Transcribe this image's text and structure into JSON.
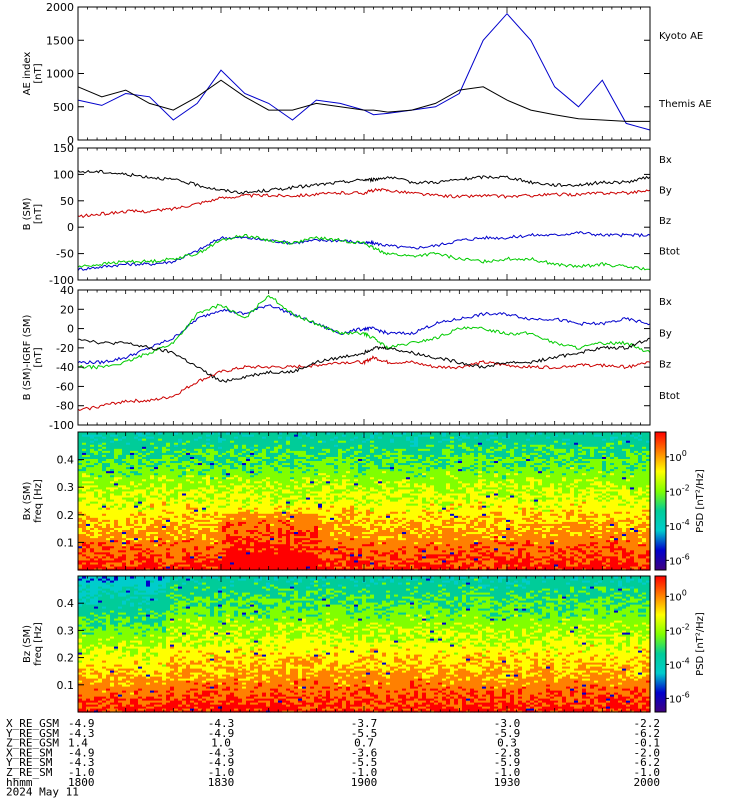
{
  "chart_data": [
    {
      "id": "ae",
      "type": "line",
      "title": "",
      "ylabel_line1": "AE index",
      "ylabel_line2": "[nT]",
      "ylim": [
        0,
        2000
      ],
      "yticks": [
        0,
        500,
        1000,
        1500,
        2000
      ],
      "x": [
        0,
        5,
        10,
        15,
        20,
        25,
        30,
        35,
        40,
        45,
        50,
        55,
        60,
        62,
        65,
        70,
        75,
        80,
        85,
        90,
        95,
        100,
        105,
        110,
        115,
        120
      ],
      "series": [
        {
          "name": "Kyoto AE",
          "color": "#0000cc",
          "values": [
            600,
            520,
            700,
            650,
            300,
            550,
            1050,
            700,
            550,
            300,
            600,
            550,
            450,
            380,
            400,
            450,
            500,
            700,
            1500,
            1900,
            1500,
            800,
            500,
            900,
            250,
            150
          ]
        },
        {
          "name": "Themis AE",
          "color": "#000000",
          "values": [
            800,
            650,
            750,
            550,
            450,
            650,
            900,
            650,
            450,
            450,
            550,
            500,
            450,
            450,
            420,
            450,
            550,
            750,
            800,
            600,
            450,
            380,
            320,
            300,
            280,
            280
          ]
        }
      ]
    },
    {
      "id": "bsm",
      "type": "line",
      "title": "",
      "ylabel_line1": "B (SM)",
      "ylabel_line2": "[nT]",
      "ylim": [
        -100,
        150
      ],
      "yticks": [
        -100,
        -50,
        0,
        50,
        100,
        150
      ],
      "x": [
        0,
        5,
        10,
        15,
        20,
        25,
        30,
        35,
        40,
        45,
        50,
        55,
        60,
        62,
        65,
        70,
        75,
        80,
        85,
        90,
        95,
        100,
        105,
        110,
        115,
        120
      ],
      "series": [
        {
          "name": "Bx",
          "color": "#0000cc",
          "values": [
            -80,
            -75,
            -70,
            -70,
            -65,
            -45,
            -20,
            -20,
            -25,
            -30,
            -25,
            -25,
            -30,
            -30,
            -35,
            -40,
            -35,
            -25,
            -20,
            -20,
            -15,
            -15,
            -10,
            -15,
            -15,
            -15
          ]
        },
        {
          "name": "By",
          "color": "#00cc00",
          "values": [
            -75,
            -70,
            -65,
            -65,
            -60,
            -50,
            -25,
            -15,
            -25,
            -30,
            -20,
            -25,
            -30,
            -40,
            -50,
            -55,
            -50,
            -60,
            -65,
            -60,
            -60,
            -70,
            -75,
            -70,
            -75,
            -80
          ]
        },
        {
          "name": "Bz",
          "color": "#cc0000",
          "values": [
            20,
            25,
            30,
            30,
            35,
            45,
            55,
            60,
            60,
            60,
            62,
            65,
            65,
            70,
            70,
            65,
            60,
            58,
            60,
            58,
            60,
            62,
            62,
            65,
            65,
            70
          ]
        },
        {
          "name": "Btot",
          "color": "#000000",
          "values": [
            105,
            105,
            100,
            95,
            90,
            80,
            70,
            65,
            70,
            75,
            80,
            85,
            90,
            90,
            95,
            85,
            85,
            90,
            95,
            95,
            85,
            80,
            80,
            85,
            85,
            95
          ]
        }
      ]
    },
    {
      "id": "bdiff",
      "type": "line",
      "title": "",
      "ylabel_line1": "B (SM)-IGRF (SM)",
      "ylabel_line2": "[nT]",
      "ylim": [
        -100,
        40
      ],
      "yticks": [
        -100,
        -80,
        -60,
        -40,
        -20,
        0,
        20,
        40
      ],
      "x": [
        0,
        5,
        10,
        15,
        20,
        25,
        30,
        35,
        40,
        45,
        50,
        55,
        60,
        62,
        65,
        70,
        75,
        80,
        85,
        90,
        95,
        100,
        105,
        110,
        115,
        120
      ],
      "series": [
        {
          "name": "Bx",
          "color": "#0000cc",
          "values": [
            -35,
            -35,
            -30,
            -20,
            -10,
            10,
            20,
            15,
            25,
            15,
            5,
            -5,
            0,
            0,
            -5,
            -5,
            5,
            10,
            15,
            15,
            10,
            10,
            5,
            5,
            10,
            5
          ]
        },
        {
          "name": "By",
          "color": "#00cc00",
          "values": [
            -40,
            -40,
            -35,
            -25,
            -15,
            15,
            25,
            10,
            35,
            15,
            5,
            -5,
            -5,
            -10,
            -20,
            -15,
            -10,
            0,
            0,
            -5,
            -5,
            -15,
            -20,
            -15,
            -15,
            -25
          ]
        },
        {
          "name": "Bz",
          "color": "#cc0000",
          "values": [
            -85,
            -80,
            -75,
            -75,
            -70,
            -55,
            -45,
            -40,
            -40,
            -40,
            -38,
            -35,
            -35,
            -30,
            -35,
            -35,
            -40,
            -40,
            -35,
            -38,
            -40,
            -40,
            -38,
            -38,
            -40,
            -35
          ]
        },
        {
          "name": "Btot",
          "color": "#000000",
          "values": [
            -10,
            -15,
            -15,
            -20,
            -25,
            -40,
            -55,
            -50,
            -45,
            -45,
            -35,
            -30,
            -25,
            -20,
            -20,
            -25,
            -30,
            -35,
            -40,
            -35,
            -35,
            -30,
            -25,
            -20,
            -20,
            -10
          ]
        }
      ]
    },
    {
      "id": "bx_spec",
      "type": "heatmap",
      "title": "",
      "ylabel_line1": "Bx (SM)",
      "ylabel_line2": "freq [Hz]",
      "ylim": [
        0,
        0.5
      ],
      "yticks": [
        0.1,
        0.2,
        0.3,
        0.4
      ],
      "colorbar_label": "PSD [nT²/Hz]",
      "colorbar_ticks": [
        {
          "base": "10",
          "exp": "0",
          "frac": 0.18
        },
        {
          "base": "10",
          "exp": "-2",
          "frac": 0.43
        },
        {
          "base": "10",
          "exp": "-4",
          "frac": 0.68
        },
        {
          "base": "10",
          "exp": "-6",
          "frac": 0.93
        }
      ]
    },
    {
      "id": "bz_spec",
      "type": "heatmap",
      "title": "",
      "ylabel_line1": "Bz (SM)",
      "ylabel_line2": "freq [Hz]",
      "ylim": [
        0,
        0.5
      ],
      "yticks": [
        0.1,
        0.2,
        0.3,
        0.4
      ],
      "colorbar_label": "PSD [nT²/Hz]",
      "colorbar_ticks": [
        {
          "base": "10",
          "exp": "0",
          "frac": 0.15
        },
        {
          "base": "10",
          "exp": "-2",
          "frac": 0.4
        },
        {
          "base": "10",
          "exp": "-4",
          "frac": 0.65
        },
        {
          "base": "10",
          "exp": "-6",
          "frac": 0.9
        }
      ]
    }
  ],
  "ephemeris": {
    "rows": [
      {
        "label": "X_RE_GSM",
        "values": [
          "-4.9",
          "-4.3",
          "-3.7",
          "-3.0",
          "-2.2"
        ]
      },
      {
        "label": "Y_RE_GSM",
        "values": [
          "-4.3",
          "-4.9",
          "-5.5",
          "-5.9",
          "-6.2"
        ]
      },
      {
        "label": "Z_RE_GSM",
        "values": [
          "1.4",
          "1.0",
          "0.7",
          "0.3",
          "-0.1"
        ]
      },
      {
        "label": "X_RE_SM",
        "values": [
          "-4.9",
          "-4.3",
          "-3.6",
          "-2.8",
          "-2.0"
        ]
      },
      {
        "label": "Y_RE_SM",
        "values": [
          "-4.3",
          "-4.9",
          "-5.5",
          "-5.9",
          "-6.2"
        ]
      },
      {
        "label": "Z_RE_SM",
        "values": [
          "-1.0",
          "-1.0",
          "-1.0",
          "-1.0",
          "-1.0"
        ]
      },
      {
        "label": "hhmm",
        "values": [
          "1800",
          "1830",
          "1900",
          "1930",
          "2000"
        ]
      }
    ],
    "date": "2024 May 11"
  },
  "colors": {
    "axis": "#000000",
    "colorbar_stops": [
      "#ff0000",
      "#ff8000",
      "#ffff00",
      "#80ff00",
      "#00cc99",
      "#00cccc",
      "#0000cc",
      "#400080"
    ]
  }
}
